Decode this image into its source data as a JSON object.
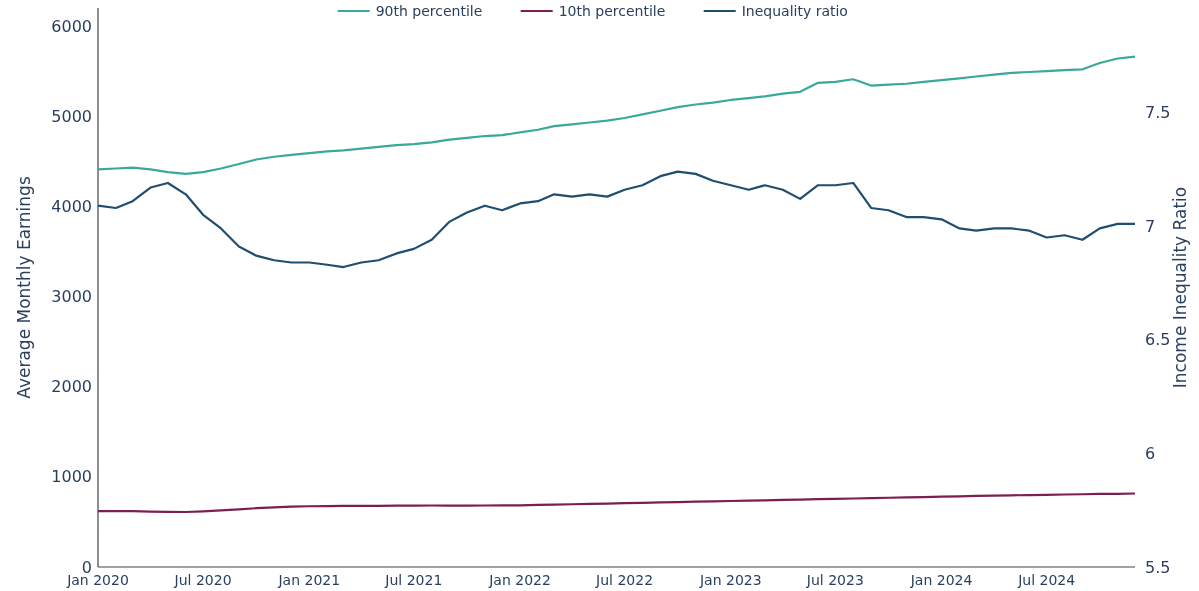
{
  "chart_data": {
    "type": "line",
    "ylabel": "Average Monthly Earnings",
    "y2label": "Income Inequality Ratio",
    "legend": "top",
    "grid": false,
    "line_style": "solid",
    "marker": "none",
    "x": [
      "2020-01",
      "2020-02",
      "2020-03",
      "2020-04",
      "2020-05",
      "2020-06",
      "2020-07",
      "2020-08",
      "2020-09",
      "2020-10",
      "2020-11",
      "2020-12",
      "2021-01",
      "2021-02",
      "2021-03",
      "2021-04",
      "2021-05",
      "2021-06",
      "2021-07",
      "2021-08",
      "2021-09",
      "2021-10",
      "2021-11",
      "2021-12",
      "2022-01",
      "2022-02",
      "2022-03",
      "2022-04",
      "2022-05",
      "2022-06",
      "2022-07",
      "2022-08",
      "2022-09",
      "2022-10",
      "2022-11",
      "2022-12",
      "2023-01",
      "2023-02",
      "2023-03",
      "2023-04",
      "2023-05",
      "2023-06",
      "2023-07",
      "2023-08",
      "2023-09",
      "2023-10",
      "2023-11",
      "2023-12",
      "2024-01",
      "2024-02",
      "2024-03",
      "2024-04",
      "2024-05",
      "2024-06",
      "2024-07",
      "2024-08",
      "2024-09",
      "2024-10",
      "2024-11",
      "2024-12"
    ],
    "xlim": [
      "2020-01",
      "2024-12"
    ],
    "xticks": [
      {
        "value": "2020-01",
        "label": "Jan 2020"
      },
      {
        "value": "2020-07",
        "label": "Jul 2020"
      },
      {
        "value": "2021-01",
        "label": "Jan 2021"
      },
      {
        "value": "2021-07",
        "label": "Jul 2021"
      },
      {
        "value": "2022-01",
        "label": "Jan 2022"
      },
      {
        "value": "2022-07",
        "label": "Jul 2022"
      },
      {
        "value": "2023-01",
        "label": "Jan 2023"
      },
      {
        "value": "2023-07",
        "label": "Jul 2023"
      },
      {
        "value": "2024-01",
        "label": "Jan 2024"
      },
      {
        "value": "2024-07",
        "label": "Jul 2024"
      }
    ],
    "ylim": [
      0,
      6200
    ],
    "yticks": [
      0,
      1000,
      2000,
      3000,
      4000,
      5000,
      6000
    ],
    "y2lim": [
      5.5,
      7.96
    ],
    "y2ticks": [
      5.5,
      6,
      6.5,
      7,
      7.5
    ],
    "series": [
      {
        "name": "90th percentile",
        "color": "#3aa89a",
        "values": [
          4410,
          4420,
          4430,
          4410,
          4380,
          4360,
          4380,
          4420,
          4470,
          4520,
          4550,
          4570,
          4590,
          4610,
          4620,
          4640,
          4660,
          4680,
          4690,
          4710,
          4740,
          4760,
          4780,
          4790,
          4820,
          4850,
          4890,
          4910,
          4930,
          4950,
          4980,
          5020,
          5060,
          5100,
          5130,
          5150,
          5180,
          5200,
          5220,
          5250,
          5270,
          5370,
          5380,
          5410,
          5340,
          5350,
          5360,
          5380,
          5400,
          5420,
          5440,
          5460,
          5480,
          5490,
          5500,
          5510,
          5520,
          5590,
          5640,
          5660
        ]
      },
      {
        "name": "10th percentile",
        "color": "#7b1f4f",
        "values": [
          620,
          620,
          620,
          615,
          612,
          610,
          618,
          628,
          640,
          652,
          662,
          670,
          674,
          676,
          677,
          678,
          679,
          680,
          681,
          682,
          681,
          681,
          682,
          683,
          684,
          688,
          692,
          696,
          700,
          704,
          708,
          712,
          716,
          720,
          724,
          728,
          732,
          736,
          740,
          744,
          748,
          752,
          756,
          760,
          764,
          768,
          772,
          776,
          780,
          784,
          788,
          792,
          795,
          798,
          801,
          804,
          807,
          810,
          812,
          815
        ]
      },
      {
        "name": "Inequality ratio",
        "color": "#1f4e70",
        "axis": "y2",
        "values": [
          7.09,
          7.08,
          7.11,
          7.17,
          7.19,
          7.14,
          7.05,
          6.99,
          6.91,
          6.87,
          6.85,
          6.84,
          6.84,
          6.83,
          6.82,
          6.84,
          6.85,
          6.88,
          6.9,
          6.94,
          7.02,
          7.06,
          7.09,
          7.07,
          7.1,
          7.11,
          7.14,
          7.13,
          7.14,
          7.13,
          7.16,
          7.18,
          7.22,
          7.24,
          7.23,
          7.2,
          7.18,
          7.16,
          7.18,
          7.16,
          7.12,
          7.18,
          7.18,
          7.19,
          7.08,
          7.07,
          7.04,
          7.04,
          7.03,
          6.99,
          6.98,
          6.99,
          6.99,
          6.98,
          6.95,
          6.96,
          6.94,
          6.99,
          7.01,
          7.01
        ]
      }
    ]
  }
}
